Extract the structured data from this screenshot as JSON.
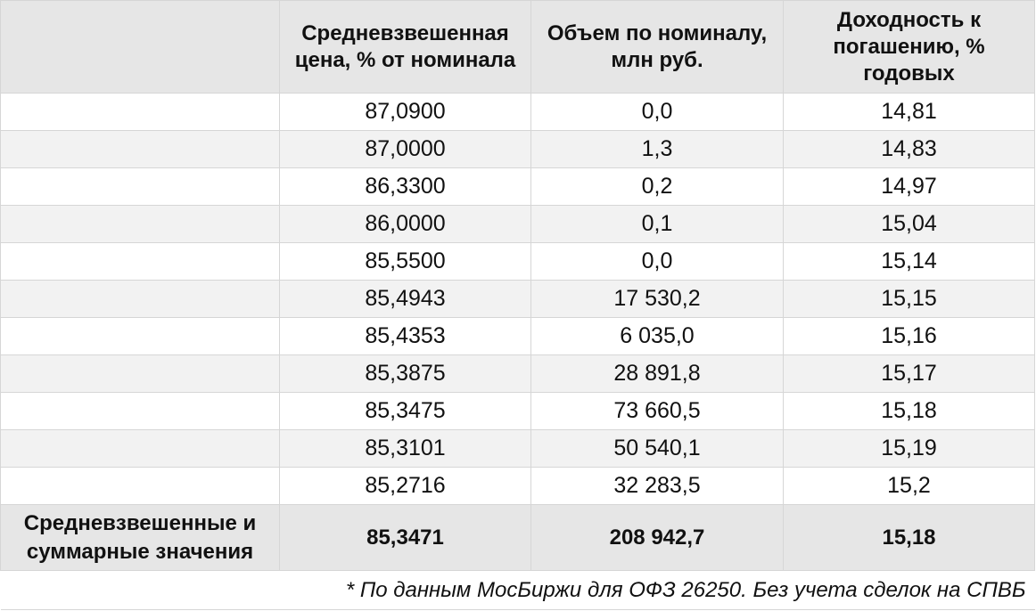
{
  "table": {
    "headers": [
      "",
      "Средневзвешенная цена, % от номинала",
      "Объем по номиналу, млн руб.",
      "Доходность к погашению, % годовых"
    ],
    "rows": [
      [
        "",
        "87,0900",
        "0,0",
        "14,81"
      ],
      [
        "",
        "87,0000",
        "1,3",
        "14,83"
      ],
      [
        "",
        "86,3300",
        "0,2",
        "14,97"
      ],
      [
        "",
        "86,0000",
        "0,1",
        "15,04"
      ],
      [
        "",
        "85,5500",
        "0,0",
        "15,14"
      ],
      [
        "",
        "85,4943",
        "17 530,2",
        "15,15"
      ],
      [
        "",
        "85,4353",
        "6 035,0",
        "15,16"
      ],
      [
        "",
        "85,3875",
        "28 891,8",
        "15,17"
      ],
      [
        "",
        "85,3475",
        "73 660,5",
        "15,18"
      ],
      [
        "",
        "85,3101",
        "50 540,1",
        "15,19"
      ],
      [
        "",
        "85,2716",
        "32 283,5",
        "15,2"
      ]
    ],
    "total": {
      "label": "Средневзвешенные и суммарные значения",
      "price": "85,3471",
      "volume": "208 942,7",
      "yield": "15,18"
    },
    "note": "* По данным МосБиржи для ОФЗ 26250. Без учета сделок на СПВБ"
  },
  "colors": {
    "header_bg": "#e6e6e6",
    "stripe_bg": "#f2f2f2",
    "border": "#d6d6d6"
  }
}
